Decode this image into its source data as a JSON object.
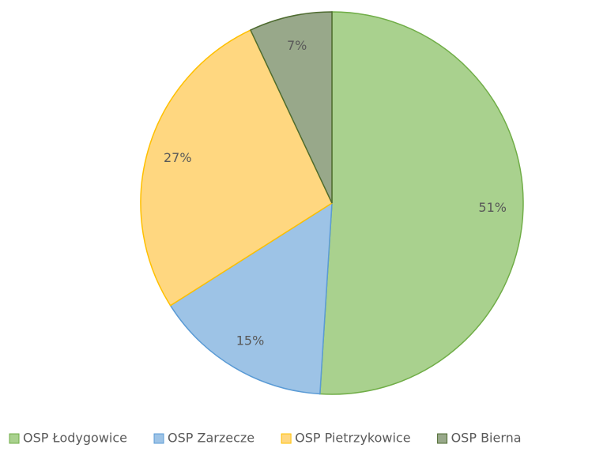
{
  "chart_data": {
    "type": "pie",
    "categories": [
      "OSP Łodygowice",
      "OSP Zarzecze",
      "OSP Pietrzykowice",
      "OSP Bierna"
    ],
    "values": [
      51,
      15,
      27,
      7
    ],
    "value_labels": [
      "51%",
      "15%",
      "27%",
      "7%"
    ],
    "colors": [
      "#a9d18e",
      "#9dc3e6",
      "#ffd780",
      "#98a88a"
    ],
    "edge_colors": [
      "#70ad47",
      "#5b9bd5",
      "#ffc000",
      "#4e6b30"
    ],
    "legend": "bottom"
  }
}
